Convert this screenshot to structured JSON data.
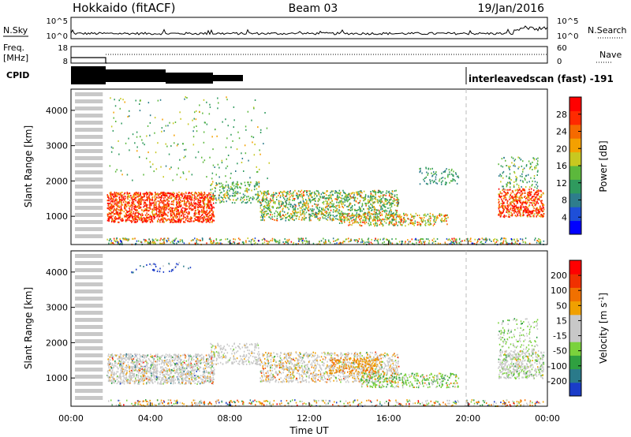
{
  "header": {
    "station": "Hokkaido (fitACF)",
    "beam": "Beam 03",
    "date": "19/Jan/2016"
  },
  "top_panels": {
    "nsky_label": "N.Sky",
    "nsearch_label": "N.Search",
    "nsky_ticks": [
      "10^5",
      "10^0"
    ],
    "nsearch_ticks": [
      "10^5",
      "10^0"
    ],
    "freq_label_line1": "Freq.",
    "freq_label_line2": "[MHz]",
    "freq_ticks": [
      "18",
      "8"
    ],
    "nave_label": "Nave",
    "nave_ticks": [
      "60",
      "0"
    ],
    "cpid_label": "CPID",
    "cpid_text": "interleavedscan (fast)  -191"
  },
  "chart_data": [
    {
      "type": "heatmap",
      "title": "",
      "xlabel": "Time UT",
      "ylabel": "Slant Range [km]",
      "x_ticks": [
        "00:00",
        "04:00",
        "08:00",
        "12:00",
        "16:00",
        "20:00",
        "00:00"
      ],
      "y_ticks": [
        "1000",
        "2000",
        "3000",
        "4000"
      ],
      "ylim": [
        200,
        4600
      ],
      "colorbar": {
        "label": "Power [dB]",
        "ticks": [
          "4",
          "8",
          "12",
          "16",
          "20",
          "24",
          "28"
        ],
        "range": [
          0,
          32
        ],
        "colors": [
          "#0000ff",
          "#1e4fd8",
          "#2e7d8c",
          "#2f9a5e",
          "#5cb83c",
          "#c8c820",
          "#f4a000",
          "#f56a00",
          "#ff2a00",
          "#ff0000"
        ]
      }
    },
    {
      "type": "heatmap",
      "title": "",
      "xlabel": "Time UT",
      "ylabel": "Slant Range [km]",
      "x_ticks": [
        "00:00",
        "04:00",
        "08:00",
        "12:00",
        "16:00",
        "20:00",
        "00:00"
      ],
      "y_ticks": [
        "1000",
        "2000",
        "3000",
        "4000"
      ],
      "ylim": [
        200,
        4600
      ],
      "colorbar": {
        "label": "Velocity [m s^-1]",
        "ticks": [
          "200",
          "100",
          "50",
          "15",
          "-15",
          "-50",
          "-100",
          "-200"
        ],
        "range": [
          -250,
          250
        ],
        "colors": [
          "#1a3cc8",
          "#2a7a8a",
          "#2fa040",
          "#7ad23c",
          "#c8c8c8",
          "#c8c8c8",
          "#f0a000",
          "#f07000",
          "#f03000",
          "#ff0000"
        ]
      }
    }
  ]
}
